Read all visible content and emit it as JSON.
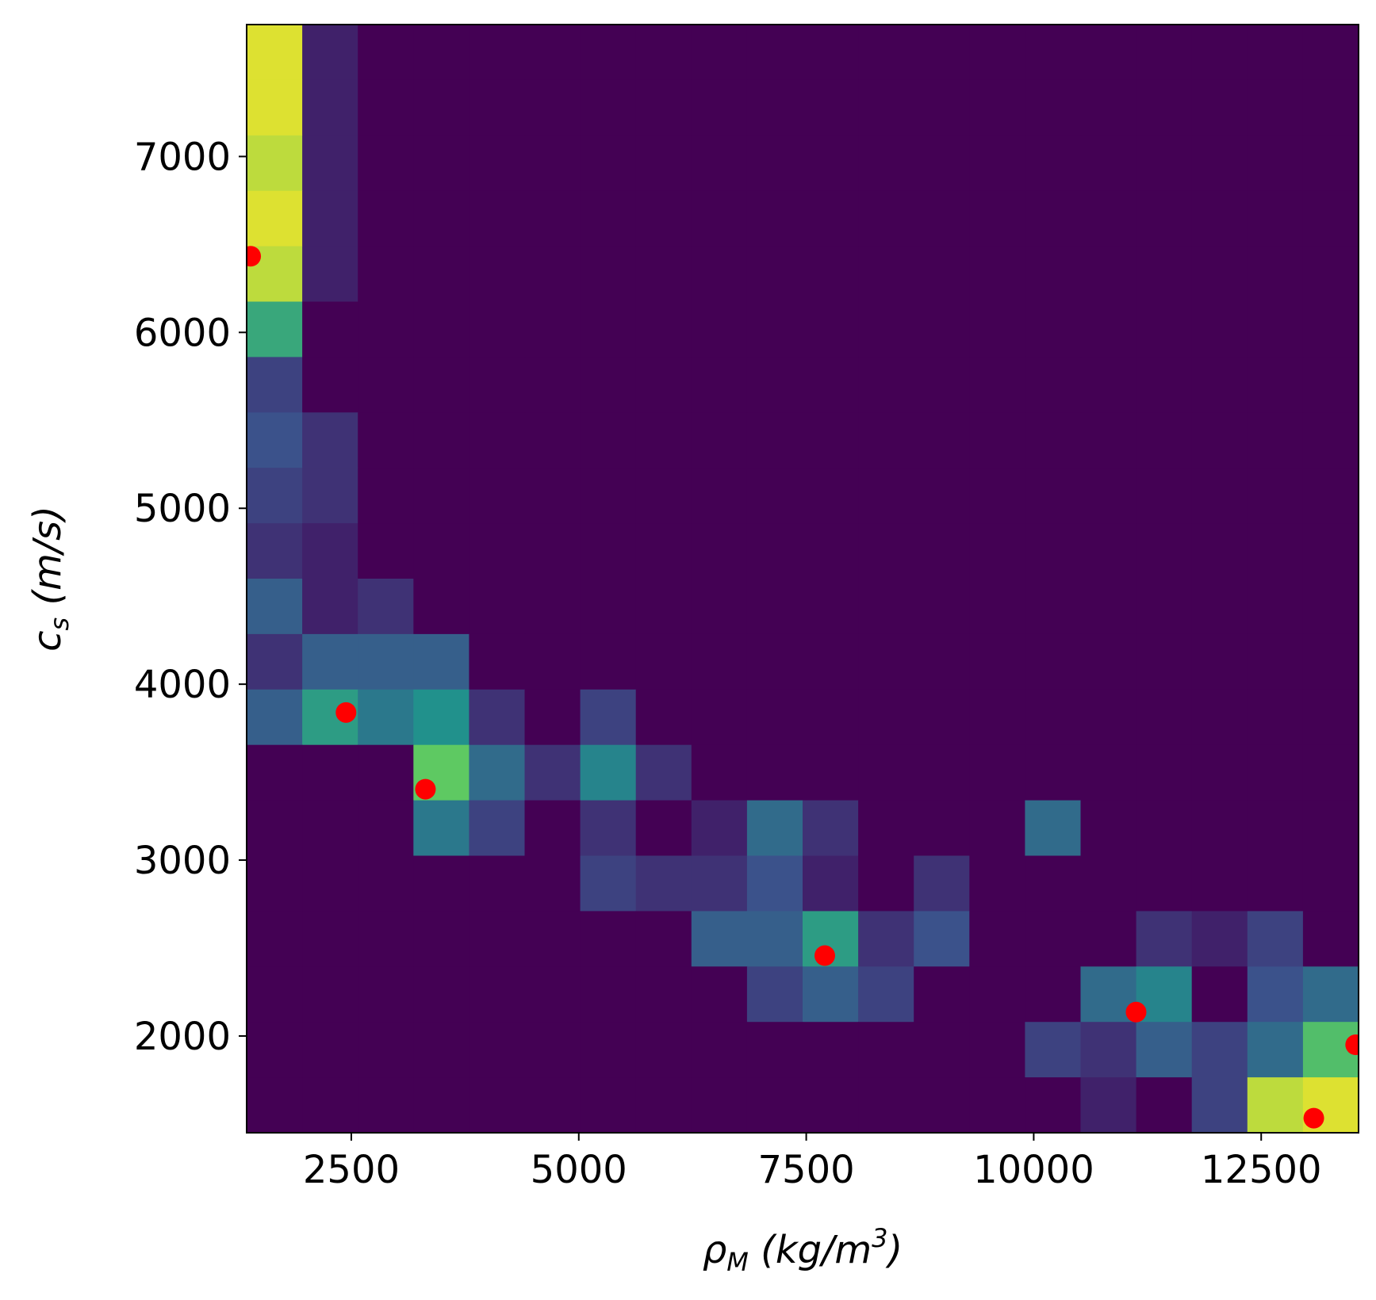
{
  "chart_data": {
    "type": "heatmap_scatter",
    "xlabel": [
      "ρ",
      "M",
      " (kg/m",
      "3",
      ")"
    ],
    "ylabel": [
      "c",
      "s",
      " (m/s)"
    ],
    "xlim": [
      1350,
      13570
    ],
    "ylim": [
      1450,
      7750
    ],
    "xticks": [
      2500,
      5000,
      7500,
      10000,
      12500
    ],
    "yticks": [
      2000,
      3000,
      4000,
      5000,
      6000,
      7000
    ],
    "colormap": "viridis",
    "z": [
      [
        0.95,
        0.1,
        0,
        0,
        0,
        0,
        0,
        0,
        0,
        0,
        0,
        0,
        0,
        0,
        0,
        0,
        0,
        0,
        0,
        0
      ],
      [
        0.95,
        0.1,
        0,
        0,
        0,
        0,
        0,
        0,
        0,
        0,
        0,
        0,
        0,
        0,
        0,
        0,
        0,
        0,
        0,
        0
      ],
      [
        0.9,
        0.1,
        0,
        0,
        0,
        0,
        0,
        0,
        0,
        0,
        0,
        0,
        0,
        0,
        0,
        0,
        0,
        0,
        0,
        0
      ],
      [
        0.95,
        0.1,
        0,
        0,
        0,
        0,
        0,
        0,
        0,
        0,
        0,
        0,
        0,
        0,
        0,
        0,
        0,
        0,
        0,
        0
      ],
      [
        0.9,
        0.1,
        0,
        0,
        0,
        0,
        0,
        0,
        0,
        0,
        0,
        0,
        0,
        0,
        0,
        0,
        0,
        0,
        0,
        0
      ],
      [
        0.6,
        0,
        0,
        0,
        0,
        0,
        0,
        0,
        0,
        0,
        0,
        0,
        0,
        0,
        0,
        0,
        0,
        0,
        0,
        0
      ],
      [
        0.2,
        0,
        0,
        0,
        0,
        0,
        0,
        0,
        0,
        0,
        0,
        0,
        0,
        0,
        0,
        0,
        0,
        0,
        0,
        0
      ],
      [
        0.25,
        0.15,
        0,
        0,
        0,
        0,
        0,
        0,
        0,
        0,
        0,
        0,
        0,
        0,
        0,
        0,
        0,
        0,
        0,
        0
      ],
      [
        0.2,
        0.15,
        0,
        0,
        0,
        0,
        0,
        0,
        0,
        0,
        0,
        0,
        0,
        0,
        0,
        0,
        0,
        0,
        0,
        0
      ],
      [
        0.15,
        0.1,
        0,
        0,
        0,
        0,
        0,
        0,
        0,
        0,
        0,
        0,
        0,
        0,
        0,
        0,
        0,
        0,
        0,
        0
      ],
      [
        0.3,
        0.1,
        0.15,
        0,
        0,
        0,
        0,
        0,
        0,
        0,
        0,
        0,
        0,
        0,
        0,
        0,
        0,
        0,
        0,
        0
      ],
      [
        0.15,
        0.3,
        0.3,
        0.3,
        0,
        0,
        0,
        0,
        0,
        0,
        0,
        0,
        0,
        0,
        0,
        0,
        0,
        0,
        0,
        0
      ],
      [
        0.3,
        0.55,
        0.4,
        0.5,
        0.15,
        0,
        0.2,
        0,
        0,
        0,
        0,
        0,
        0,
        0,
        0,
        0,
        0,
        0,
        0,
        0
      ],
      [
        0,
        0,
        0,
        0.75,
        0.35,
        0.15,
        0.45,
        0.15,
        0,
        0,
        0,
        0,
        0,
        0,
        0,
        0,
        0,
        0,
        0,
        0
      ],
      [
        0,
        0,
        0,
        0.4,
        0.2,
        0,
        0.15,
        0,
        0.1,
        0.35,
        0.15,
        0,
        0,
        0,
        0.35,
        0,
        0,
        0,
        0,
        0
      ],
      [
        0,
        0,
        0,
        0,
        0,
        0,
        0.2,
        0.15,
        0.15,
        0.25,
        0.1,
        0,
        0.15,
        0,
        0,
        0,
        0,
        0,
        0,
        0
      ],
      [
        0,
        0,
        0,
        0,
        0,
        0,
        0,
        0,
        0.3,
        0.3,
        0.55,
        0.15,
        0.25,
        0,
        0,
        0,
        0.15,
        0.1,
        0.2,
        0
      ],
      [
        0,
        0,
        0,
        0,
        0,
        0,
        0,
        0,
        0,
        0.2,
        0.3,
        0.2,
        0,
        0,
        0,
        0.35,
        0.45,
        0,
        0.25,
        0.35
      ],
      [
        0,
        0,
        0,
        0,
        0,
        0,
        0,
        0,
        0,
        0,
        0,
        0,
        0,
        0,
        0.2,
        0.15,
        0.3,
        0.2,
        0.35,
        0.7
      ],
      [
        0,
        0,
        0,
        0,
        0,
        0,
        0,
        0,
        0,
        0,
        0,
        0,
        0,
        0,
        0,
        0.1,
        0,
        0.2,
        0.9,
        0.95
      ]
    ],
    "points": {
      "color": "#ff0000",
      "x": [
        1394,
        2442,
        3315,
        7704,
        11125,
        13538,
        13078
      ],
      "y": [
        6433,
        3839,
        3403,
        2457,
        2136,
        1950,
        1533
      ]
    }
  }
}
